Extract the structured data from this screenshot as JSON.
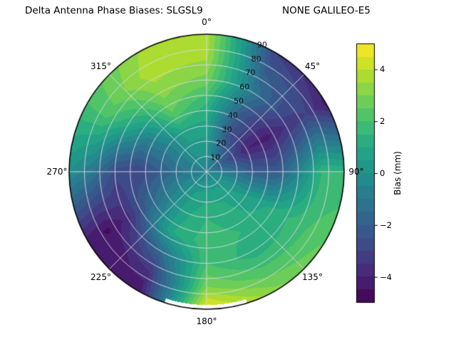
{
  "title": {
    "left": "Delta Antenna Phase Biases: SLGSL9",
    "right": "NONE GALILEO-E5"
  },
  "colorbar": {
    "label": "Bias (mm)",
    "ticks": [
      {
        "value": 4,
        "label": "4"
      },
      {
        "value": 2,
        "label": "2"
      },
      {
        "value": 0,
        "label": "0"
      },
      {
        "value": -2,
        "label": "−2"
      },
      {
        "value": -4,
        "label": "−4"
      }
    ]
  },
  "polar": {
    "azimuth_labels": [
      "0°",
      "45°",
      "90°",
      "135°",
      "180°",
      "225°",
      "270°",
      "315°"
    ],
    "radial_tick_labels": [
      "10",
      "20",
      "30",
      "40",
      "50",
      "60",
      "70",
      "80",
      "90"
    ],
    "radial_label_azimuth_deg": 22.5
  },
  "chart_data": {
    "type": "heatmap",
    "projection": "polar-contourf",
    "title": "Delta Antenna Phase Biases: SLGSL9  NONE GALILEO-E5",
    "colormap": "viridis",
    "colorbar_label": "Bias (mm)",
    "units": "mm",
    "value_range": [
      -5,
      5
    ],
    "contour_interval": 0.5,
    "azimuth_deg": [
      0,
      30,
      60,
      90,
      120,
      150,
      180,
      210,
      240,
      270,
      300,
      330
    ],
    "zenith_deg": [
      0,
      15,
      30,
      45,
      60,
      75,
      90
    ],
    "bias_mm": [
      [
        -0.5,
        -0.5,
        -0.5,
        -0.5,
        -0.5,
        -0.5,
        -0.5,
        -0.5,
        -0.5,
        -0.5,
        -0.5,
        -0.5
      ],
      [
        0.2,
        -1.5,
        -2.5,
        -1.0,
        0.3,
        0.8,
        0.8,
        0.5,
        -0.3,
        -1.0,
        -0.5,
        0.2
      ],
      [
        0.8,
        -2.5,
        -4.0,
        -2.0,
        0.5,
        1.2,
        1.5,
        0.8,
        -0.8,
        -2.0,
        -0.8,
        0.8
      ],
      [
        1.5,
        -2.0,
        -4.2,
        -2.2,
        1.0,
        1.5,
        1.8,
        1.0,
        -1.8,
        -3.0,
        -0.5,
        2.5
      ],
      [
        2.8,
        -1.0,
        -3.5,
        -0.5,
        1.5,
        1.2,
        2.0,
        -1.5,
        -3.8,
        -2.8,
        1.0,
        3.2
      ],
      [
        3.6,
        -2.0,
        -3.0,
        1.5,
        2.0,
        2.2,
        3.0,
        -3.5,
        -4.6,
        -1.0,
        2.2,
        3.8
      ],
      [
        3.8,
        -3.0,
        -4.2,
        1.5,
        2.5,
        3.2,
        5.0,
        -4.5,
        -4.2,
        0.0,
        2.0,
        3.5
      ]
    ],
    "white_mask": {
      "az_min": 163,
      "az_max": 198,
      "zen_min": 87
    },
    "viridis_stops": [
      "#440154",
      "#482475",
      "#414487",
      "#355f8d",
      "#2a788e",
      "#21918c",
      "#22a884",
      "#44bf70",
      "#7ad151",
      "#bddf26",
      "#fde725"
    ]
  }
}
